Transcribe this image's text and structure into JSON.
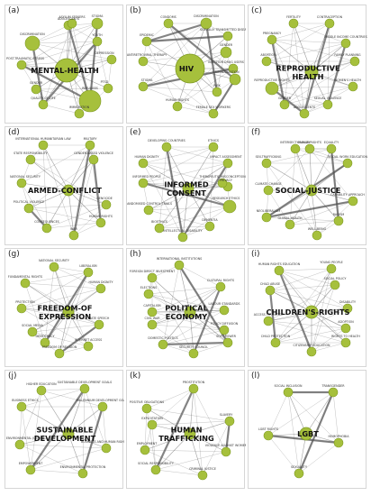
{
  "colors": {
    "node_fill": "#a6c03c",
    "node_stroke": "#7e9a22",
    "edge": "#505050",
    "panel_border": "#d6d6d6"
  },
  "panels": [
    {
      "letter": "(a)",
      "center": "MENTAL-HEALTH",
      "nodes": [
        "ADOLESCENTS",
        "STIGMA",
        "DISCRIMINATION",
        "YOUTH",
        "POST-TRAUMATIC STRESS",
        "DEPRESSION",
        "PTSD",
        "GENDER",
        "QUALITY-OF-LIFE",
        "IMMIGRATION",
        "REFUGEES",
        "ASYLUM SEEKERS"
      ]
    },
    {
      "letter": "(b)",
      "center": "HIV",
      "nodes": [
        "CONDOMS",
        "DISCRIMINATION",
        "SEXUALLY TRANSMITTED DISEASES",
        "EPIDEMIC",
        "ANTIRETROVIRAL THERAPY",
        "GENDER",
        "HUMAN RIGHTS",
        "FEMALE SEX WORKERS",
        "CRIMINALIZATION",
        "INJECTION DRUG USERS",
        "STIGMA",
        "RISK"
      ]
    },
    {
      "letter": "(c)",
      "center": "REPRODUCTIVE HEALTH",
      "nodes": [
        "FERTILITY",
        "CONTRACEPTION",
        "PREGNANCY",
        "MIDDLE INCOME COUNTRIES",
        "ABORTION",
        "FAMILY PLANNING",
        "REPRODUCTIVE RIGHTS",
        "WOMEN'S HEALTH",
        "GENDER",
        "SEXUAL VIOLENCE",
        "ADOLESCENTS"
      ]
    },
    {
      "letter": "(d)",
      "center": "ARMED-CONFLICT",
      "nodes": [
        "INTERNATIONAL HUMANITARIAN LAW",
        "MILITARY",
        "GENDER-BASED VIOLENCE",
        "STATE RESPONSIBILITY",
        "NATIONAL SECURITY",
        "POLITICAL VIOLENCE",
        "GENOCIDE",
        "CONSEQUENCES",
        "HUMAN RIGHTS",
        "WAR"
      ]
    },
    {
      "letter": "(e)",
      "center": "INFORMED CONSENT",
      "nodes": [
        "DEVELOPING COUNTRIES",
        "ETHICS",
        "HUMAN DIGNITY",
        "IMPACT ASSESSMENT",
        "INFORMED PEOPLE",
        "PRIVACY",
        "THERAPEUTIC MISCONCEPTION",
        "RANDOMISED CONTROL TRIALS",
        "RESEARCH ETHICS",
        "BIOETHICS",
        "DEMENTIA",
        "INTELLECTUAL DISABILITY"
      ]
    },
    {
      "letter": "(f)",
      "center": "SOCIAL-JUSTICE",
      "nodes": [
        "INTERSECTIONALITY",
        "EQUALITY",
        "SEX-TRAFFICKING",
        "SOCIAL WORK EDUCATION",
        "HUMAN RIGHTS",
        "CLIMATE CHANGE",
        "NEOLIBERALISM",
        "CAPABILITY APPROACH",
        "GLOBAL HEALTH",
        "RACISM",
        "WELL-BEING"
      ]
    },
    {
      "letter": "(g)",
      "center": "FREEDOM-OF EXPRESSION",
      "nodes": [
        "NATIONAL SECURITY",
        "LIBERALISM",
        "FUNDAMENTAL RIGHTS",
        "HUMAN DIGNITY",
        "PROTECTION",
        "HATE SPEECH",
        "SOCIAL MEDIA",
        "INTERNET ACCESS",
        "FREEDOM OF RELIGION",
        "DEMOCRACY"
      ]
    },
    {
      "letter": "(h)",
      "center": "POLITICAL ECONOMY",
      "nodes": [
        "INTERNATIONAL INSTITUTIONS",
        "FOREIGN DIRECT INVESTMENT",
        "ELECTIONS",
        "CULTURAL RIGHTS",
        "CAPITALISM",
        "LABOUR STANDARDS",
        "CIVIL WAR",
        "POLICY DIFFUSION",
        "DOMESTIC POLITICS",
        "SECURITY COUNCIL",
        "SOFT POWER"
      ]
    },
    {
      "letter": "(i)",
      "center": "CHILDREN'S-RIGHTS",
      "nodes": [
        "YOUNG PEOPLE",
        "HUMAN RIGHTS EDUCATION",
        "SOCIAL POLICY",
        "CHILD ABUSE",
        "DISABILITY",
        "ACCESS TO JUSTICE",
        "ADOPTION",
        "CHILD PROTECTION",
        "RIGHTS TO HEALTH",
        "CITIZENSHIP EDUCATION"
      ]
    },
    {
      "letter": "(j)",
      "center": "SUSTAINABLE DEVELOPMENT",
      "nodes": [
        "SUSTAINABLE DEVELOPMENT GOALS",
        "HIGHER EDUCATION",
        "MILLENNIUM DEVELOPMENT GOALS",
        "BUSINESS ETHICS",
        "ENVIRONMENTAL JUSTICE",
        "BUSINESS AND HUMAN RIGHTS",
        "EMPOWERMENT",
        "ENVIRONMENTAL PROTECTION"
      ]
    },
    {
      "letter": "(k)",
      "center": "HUMAN TRAFFICKING",
      "nodes": [
        "PROSTITUTION",
        "POSITIVE OBLIGATIONS",
        "SLAVERY",
        "EXPLOITATION",
        "EMPLOYMENT",
        "VIOLENCE AGAINST WOMEN",
        "SOCIAL RESPONSIBILITY",
        "CRIMINAL JUSTICE"
      ]
    },
    {
      "letter": "(l)",
      "center": "LGBT",
      "nodes": [
        "SOCIAL INCLUSION",
        "TRANSGENDER",
        "LGBT RIGHTS",
        "HOMOPHOBIA",
        "SEXUALITY"
      ]
    }
  ]
}
